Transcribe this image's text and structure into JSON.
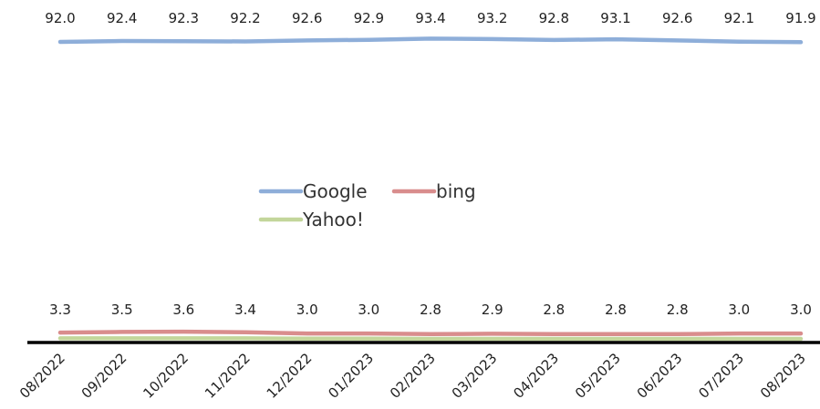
{
  "chart_data": {
    "type": "line",
    "categories": [
      "08/2022",
      "09/2022",
      "10/2022",
      "11/2022",
      "12/2022",
      "01/2023",
      "02/2023",
      "03/2023",
      "04/2023",
      "05/2023",
      "06/2023",
      "07/2023",
      "08/2023"
    ],
    "series": [
      {
        "name": "Google",
        "color": "#8eaed9",
        "values": [
          92.0,
          92.4,
          92.3,
          92.2,
          92.6,
          92.9,
          93.4,
          93.2,
          92.8,
          93.1,
          92.6,
          92.1,
          91.9
        ],
        "value_labels": [
          "92.0",
          "92.4",
          "92.3",
          "92.2",
          "92.6",
          "92.9",
          "93.4",
          "93.2",
          "92.8",
          "93.1",
          "92.6",
          "92.1",
          "91.9"
        ]
      },
      {
        "name": "bing",
        "color": "#d98d8d",
        "values": [
          3.3,
          3.5,
          3.6,
          3.4,
          3.0,
          3.0,
          2.8,
          2.9,
          2.8,
          2.8,
          2.8,
          3.0,
          3.0
        ],
        "value_labels": [
          "3.3",
          "3.5",
          "3.6",
          "3.4",
          "3.0",
          "3.0",
          "2.8",
          "2.9",
          "2.8",
          "2.8",
          "2.8",
          "3.0",
          "3.0"
        ]
      },
      {
        "name": "Yahoo!",
        "color": "#c3d69b",
        "values": [
          1.4,
          1.4,
          1.4,
          1.4,
          1.3,
          1.3,
          1.2,
          1.2,
          1.2,
          1.2,
          1.2,
          1.2,
          1.2
        ]
      }
    ],
    "legend_position": "center",
    "grid": false,
    "axis_line_color": "#000000"
  }
}
